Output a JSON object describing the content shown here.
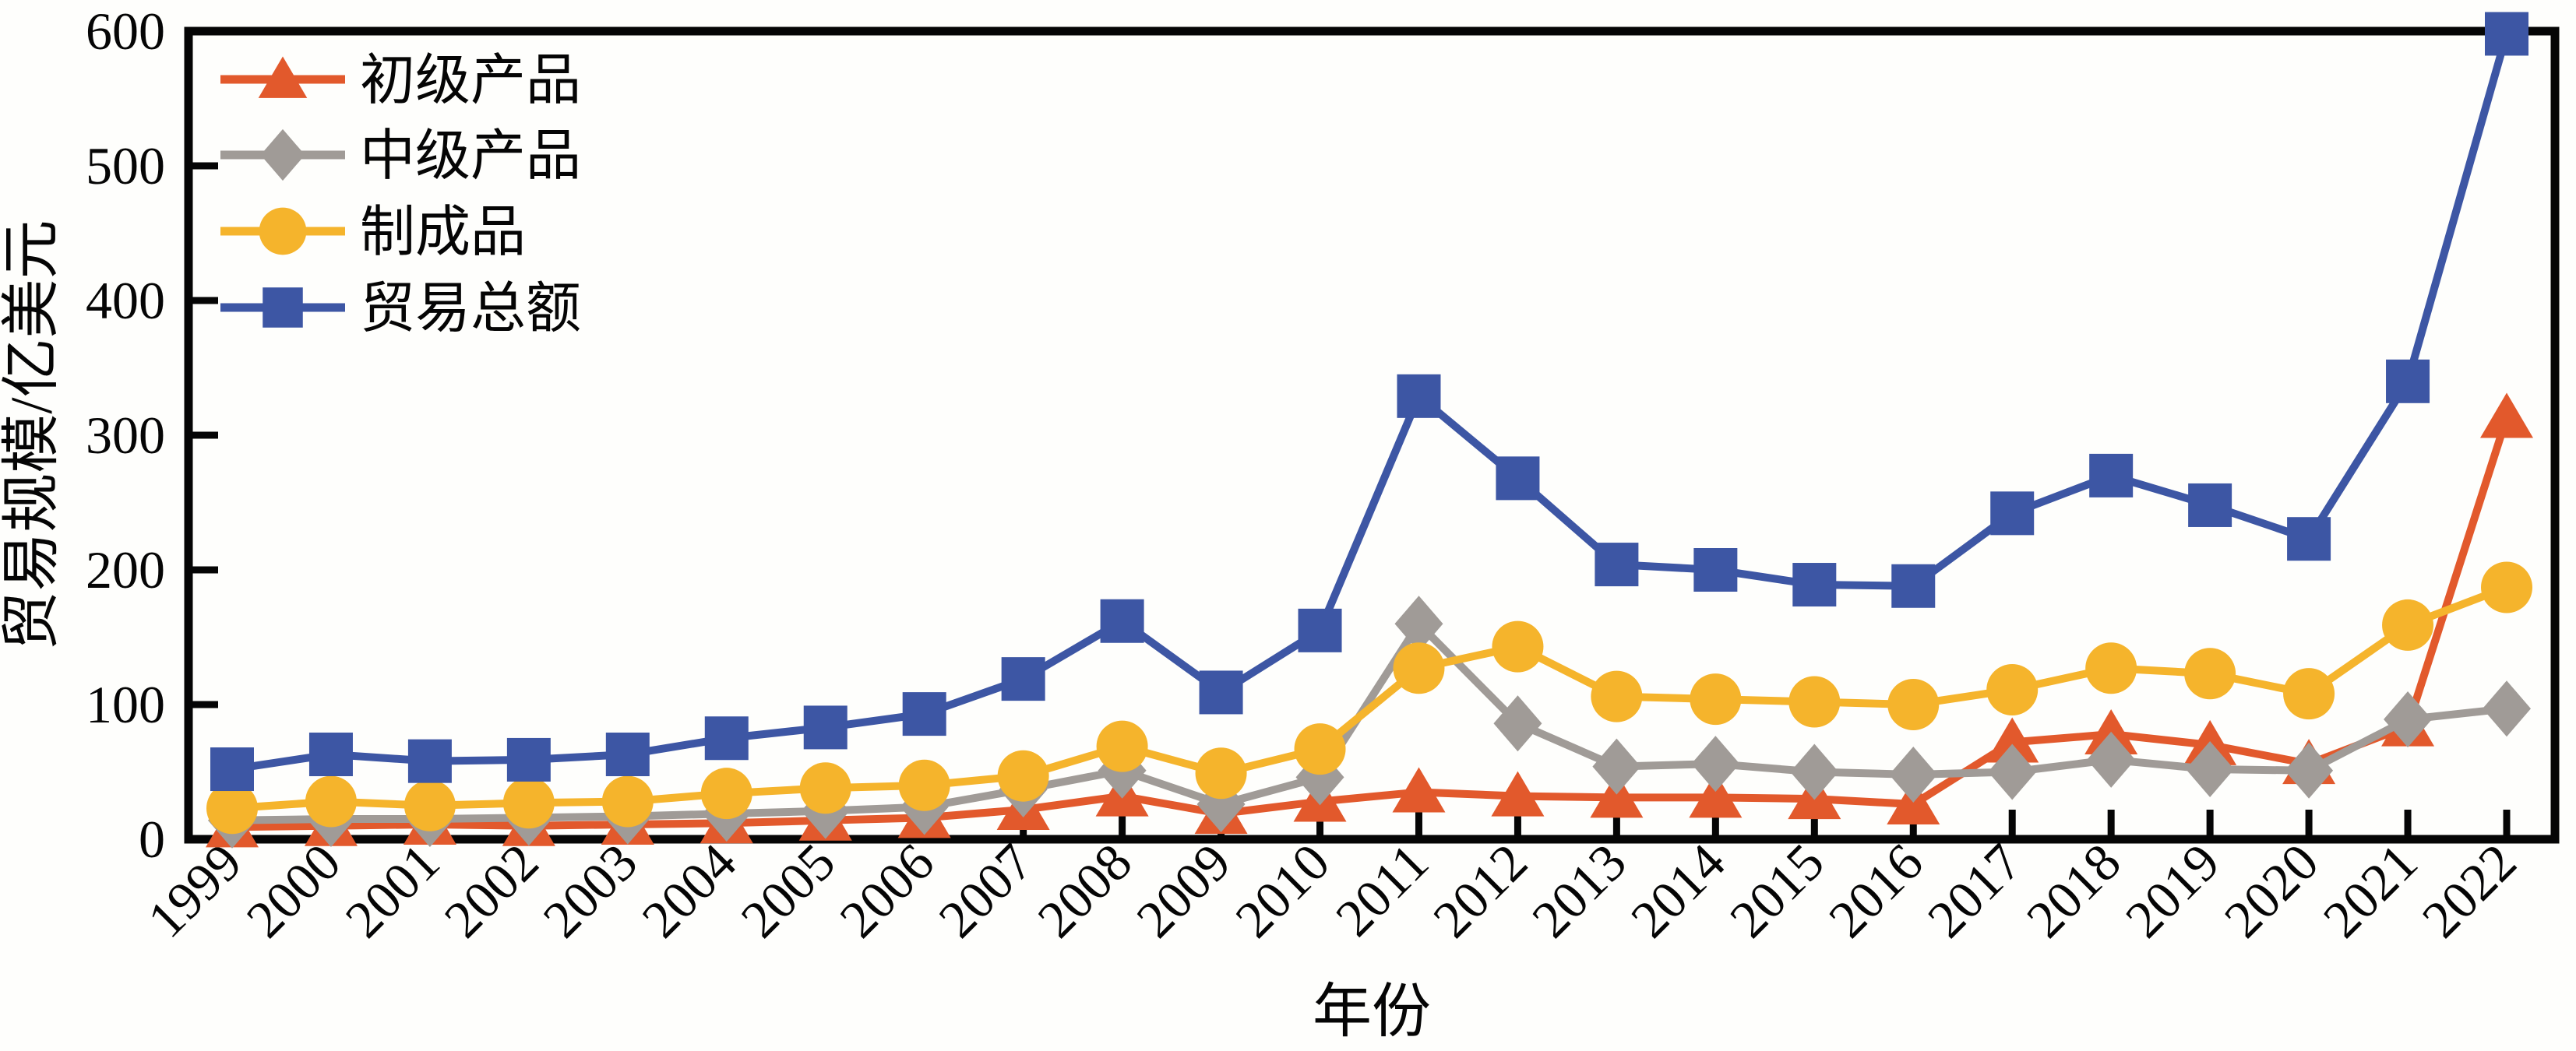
{
  "chart_data": {
    "type": "line",
    "title": "",
    "xlabel": "年份",
    "ylabel": "贸易规模/亿美元",
    "x": [
      1999,
      2000,
      2001,
      2002,
      2003,
      2004,
      2005,
      2006,
      2007,
      2008,
      2009,
      2010,
      2011,
      2012,
      2013,
      2014,
      2015,
      2016,
      2017,
      2018,
      2019,
      2020,
      2021,
      2022
    ],
    "ylim": [
      0,
      600
    ],
    "y_ticks": [
      0,
      100,
      200,
      300,
      400,
      500,
      600
    ],
    "grid": false,
    "legend_position": "upper-left",
    "axis_color": "#050505",
    "background_color": "#fefefc",
    "series": [
      {
        "name": "初级产品",
        "marker": "triangle",
        "color": "#e2592c",
        "values": [
          9,
          10,
          11,
          10,
          11,
          12,
          14,
          16,
          22,
          32,
          19,
          28,
          35,
          32,
          31,
          31,
          30,
          26,
          72,
          78,
          70,
          56,
          84,
          313
        ]
      },
      {
        "name": "中级产品",
        "marker": "diamond",
        "color": "#a09b97",
        "values": [
          14,
          15,
          15,
          16,
          17,
          19,
          21,
          24,
          37,
          51,
          26,
          46,
          160,
          86,
          54,
          56,
          50,
          48,
          50,
          59,
          52,
          51,
          89,
          97
        ]
      },
      {
        "name": "制成品",
        "marker": "circle",
        "color": "#f5b42c",
        "values": [
          23,
          28,
          25,
          27,
          28,
          34,
          38,
          40,
          47,
          69,
          49,
          67,
          127,
          143,
          106,
          104,
          102,
          100,
          111,
          127,
          123,
          108,
          159,
          187
        ]
      },
      {
        "name": "贸易总额",
        "marker": "square",
        "color": "#3d56a4",
        "values": [
          52,
          63,
          58,
          59,
          63,
          75,
          83,
          93,
          119,
          162,
          109,
          155,
          329,
          268,
          204,
          200,
          189,
          188,
          242,
          270,
          248,
          223,
          340,
          598
        ]
      }
    ]
  }
}
